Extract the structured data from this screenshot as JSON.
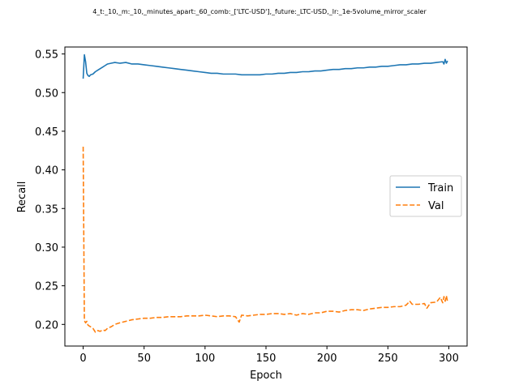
{
  "chart_data": {
    "type": "line",
    "title": "4_t:_10,_m:_10,_minutes_apart:_60_comb:_['LTC-USD'],_future:_LTC-USD,_lr:_1e-5volume_mirror_scaler",
    "xlabel": "Epoch",
    "ylabel": "Recall",
    "xlim": [
      -15,
      315
    ],
    "ylim": [
      0.172,
      0.559
    ],
    "xticks": [
      0,
      50,
      100,
      150,
      200,
      250,
      300
    ],
    "yticks": [
      0.2,
      0.25,
      0.3,
      0.35,
      0.4,
      0.45,
      0.5,
      0.55
    ],
    "ytick_labels": [
      "0.20",
      "0.25",
      "0.30",
      "0.35",
      "0.40",
      "0.45",
      "0.50",
      "0.55"
    ],
    "grid": false,
    "legend_position": "center-right",
    "series": [
      {
        "name": "Train",
        "color": "#1f77b4",
        "style": "solid",
        "x": [
          0,
          1,
          2,
          3,
          4,
          5,
          6,
          8,
          10,
          12,
          14,
          16,
          18,
          20,
          23,
          26,
          30,
          35,
          40,
          45,
          50,
          55,
          60,
          65,
          70,
          75,
          80,
          85,
          90,
          95,
          100,
          105,
          110,
          115,
          120,
          125,
          130,
          135,
          140,
          145,
          150,
          155,
          160,
          165,
          170,
          175,
          180,
          185,
          190,
          195,
          200,
          205,
          210,
          215,
          220,
          225,
          230,
          235,
          240,
          245,
          250,
          255,
          260,
          265,
          270,
          275,
          280,
          285,
          290,
          295,
          296,
          297,
          298,
          299
        ],
        "values": [
          0.518,
          0.549,
          0.54,
          0.525,
          0.522,
          0.521,
          0.523,
          0.524,
          0.527,
          0.529,
          0.531,
          0.533,
          0.535,
          0.537,
          0.538,
          0.539,
          0.538,
          0.539,
          0.537,
          0.537,
          0.536,
          0.535,
          0.534,
          0.533,
          0.532,
          0.531,
          0.53,
          0.529,
          0.528,
          0.527,
          0.526,
          0.525,
          0.525,
          0.524,
          0.524,
          0.524,
          0.523,
          0.523,
          0.523,
          0.523,
          0.524,
          0.524,
          0.525,
          0.525,
          0.526,
          0.526,
          0.527,
          0.527,
          0.528,
          0.528,
          0.529,
          0.53,
          0.53,
          0.531,
          0.531,
          0.532,
          0.532,
          0.533,
          0.533,
          0.534,
          0.534,
          0.535,
          0.536,
          0.536,
          0.537,
          0.537,
          0.538,
          0.538,
          0.539,
          0.54,
          0.537,
          0.543,
          0.538,
          0.541
        ]
      },
      {
        "name": "Val",
        "color": "#ff7f0e",
        "style": "dashed",
        "x": [
          0,
          1,
          2,
          3,
          4,
          6,
          8,
          10,
          12,
          14,
          16,
          18,
          20,
          23,
          26,
          30,
          35,
          40,
          45,
          50,
          55,
          60,
          65,
          70,
          75,
          80,
          85,
          90,
          95,
          100,
          105,
          110,
          115,
          120,
          125,
          128,
          130,
          135,
          140,
          145,
          150,
          155,
          160,
          165,
          170,
          175,
          180,
          185,
          190,
          195,
          200,
          205,
          210,
          215,
          220,
          225,
          230,
          235,
          240,
          245,
          250,
          255,
          260,
          265,
          268,
          270,
          275,
          280,
          282,
          285,
          290,
          293,
          295,
          296,
          297,
          298,
          299
        ],
        "values": [
          0.43,
          0.205,
          0.202,
          0.204,
          0.199,
          0.197,
          0.195,
          0.19,
          0.192,
          0.191,
          0.193,
          0.192,
          0.195,
          0.197,
          0.2,
          0.202,
          0.204,
          0.206,
          0.207,
          0.208,
          0.208,
          0.209,
          0.209,
          0.21,
          0.21,
          0.21,
          0.211,
          0.211,
          0.211,
          0.212,
          0.211,
          0.21,
          0.211,
          0.211,
          0.21,
          0.203,
          0.212,
          0.211,
          0.212,
          0.213,
          0.213,
          0.214,
          0.214,
          0.213,
          0.214,
          0.212,
          0.214,
          0.213,
          0.215,
          0.215,
          0.217,
          0.217,
          0.216,
          0.218,
          0.219,
          0.219,
          0.218,
          0.22,
          0.221,
          0.222,
          0.222,
          0.223,
          0.223,
          0.225,
          0.23,
          0.226,
          0.226,
          0.227,
          0.221,
          0.228,
          0.229,
          0.235,
          0.228,
          0.236,
          0.23,
          0.237,
          0.229
        ]
      }
    ]
  }
}
